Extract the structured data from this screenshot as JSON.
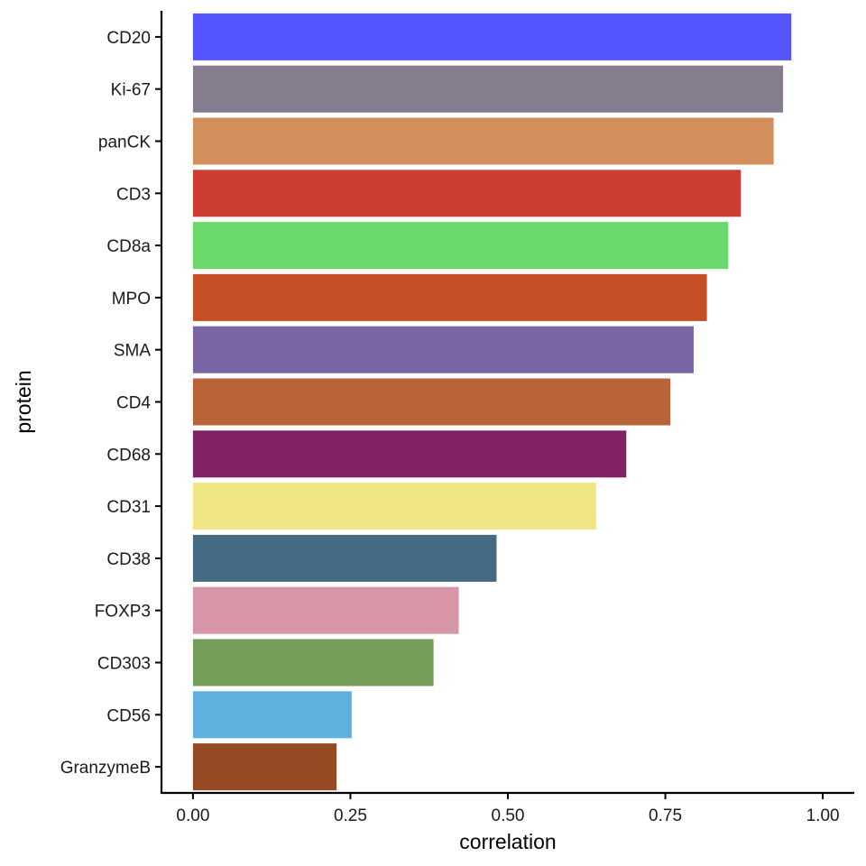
{
  "chart_data": {
    "type": "bar",
    "orientation": "horizontal",
    "xlabel": "correlation",
    "ylabel": "protein",
    "xlim": [
      -0.05,
      1.05
    ],
    "x_ticks": [
      0.0,
      0.25,
      0.5,
      0.75,
      1.0
    ],
    "x_tick_labels": [
      "0.00",
      "0.25",
      "0.50",
      "0.75",
      "1.00"
    ],
    "grid": false,
    "legend": "none",
    "bars": [
      {
        "category": "CD20",
        "value": 0.95,
        "color": "#5555FF"
      },
      {
        "category": "Ki-67",
        "value": 0.937,
        "color": "#857C8D"
      },
      {
        "category": "panCK",
        "value": 0.922,
        "color": "#D48E5C"
      },
      {
        "category": "CD3",
        "value": 0.87,
        "color": "#CD3D32"
      },
      {
        "category": "CD8a",
        "value": 0.85,
        "color": "#6AD86A"
      },
      {
        "category": "MPO",
        "value": 0.816,
        "color": "#C55028"
      },
      {
        "category": "SMA",
        "value": 0.795,
        "color": "#7A66A5"
      },
      {
        "category": "CD4",
        "value": 0.758,
        "color": "#B96438"
      },
      {
        "category": "CD68",
        "value": 0.688,
        "color": "#802264"
      },
      {
        "category": "CD31",
        "value": 0.64,
        "color": "#F1E686"
      },
      {
        "category": "CD38",
        "value": 0.482,
        "color": "#456A83"
      },
      {
        "category": "FOXP3",
        "value": 0.422,
        "color": "#D795A8"
      },
      {
        "category": "CD303",
        "value": 0.382,
        "color": "#759C59"
      },
      {
        "category": "CD56",
        "value": 0.252,
        "color": "#5EB1DE"
      },
      {
        "category": "GranzymeB",
        "value": 0.228,
        "color": "#964A24"
      }
    ]
  }
}
